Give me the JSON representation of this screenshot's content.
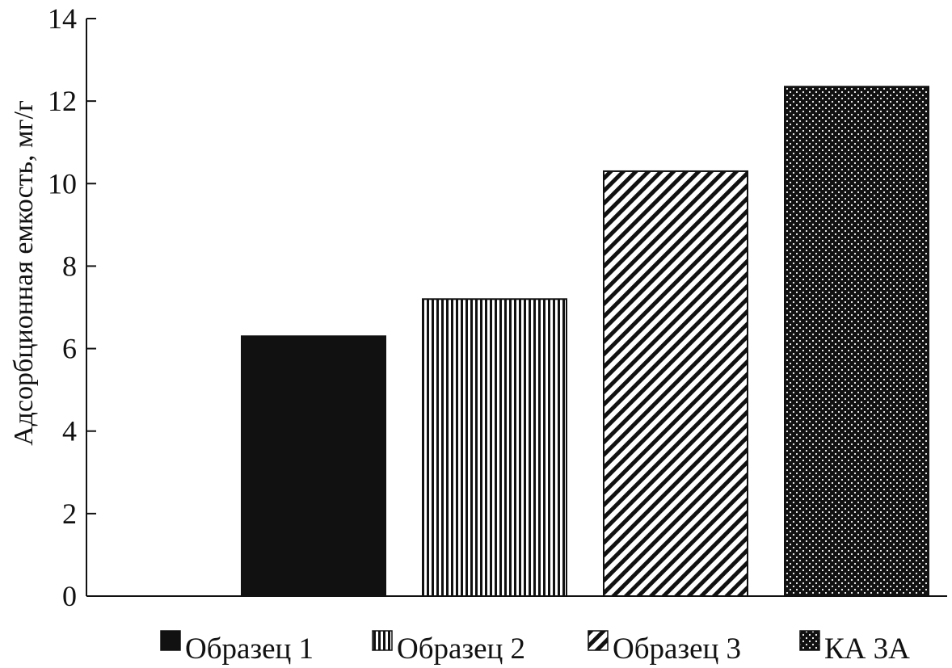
{
  "chart_data": {
    "type": "bar",
    "categories": [
      "Образец 1",
      "Образец 2",
      "Образец 3",
      "КА 3А"
    ],
    "values": [
      6.3,
      7.2,
      10.3,
      12.35
    ],
    "title": "",
    "xlabel": "",
    "ylabel": "Адсорбционная емкость, мг/г",
    "ylim": [
      0,
      14
    ],
    "yticks": [
      0,
      2,
      4,
      6,
      8,
      10,
      12,
      14
    ],
    "grid": false,
    "legend": {
      "placement": "bottom",
      "entries": [
        "Образец 1",
        "Образец 2",
        "Образец 3",
        "КА 3А"
      ]
    },
    "patterns": [
      "solid-black",
      "vertical-lines",
      "diagonal-lines",
      "dotted-black"
    ]
  }
}
